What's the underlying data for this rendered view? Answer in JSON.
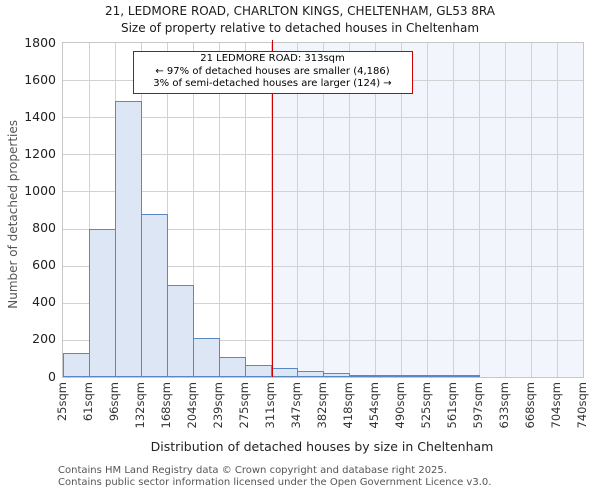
{
  "header": {
    "title": "21, LEDMORE ROAD, CHARLTON KINGS, CHELTENHAM, GL53 8RA",
    "subtitle": "Size of property relative to detached houses in Cheltenham"
  },
  "chart_data": {
    "type": "bar",
    "title": "21, LEDMORE ROAD, CHARLTON KINGS, CHELTENHAM, GL53 8RA",
    "subtitle": "Size of property relative to detached houses in Cheltenham",
    "xlabel": "Distribution of detached houses by size in Cheltenham",
    "ylabel": "Number of detached properties",
    "ylim": [
      0,
      1800
    ],
    "ytick_step": 200,
    "x_range_sqm": [
      25,
      740
    ],
    "tick_labels": [
      "25sqm",
      "61sqm",
      "96sqm",
      "132sqm",
      "168sqm",
      "204sqm",
      "239sqm",
      "275sqm",
      "311sqm",
      "347sqm",
      "382sqm",
      "418sqm",
      "454sqm",
      "490sqm",
      "525sqm",
      "561sqm",
      "597sqm",
      "633sqm",
      "668sqm",
      "704sqm",
      "740sqm"
    ],
    "values": [
      130,
      800,
      1490,
      880,
      495,
      210,
      110,
      65,
      50,
      30,
      22,
      10,
      5,
      5,
      5,
      5,
      0,
      0,
      0,
      0
    ],
    "grid": true,
    "legend": null,
    "marker": {
      "value_sqm": 313,
      "label_line1": "21 LEDMORE ROAD: 313sqm",
      "label_line2": "← 97% of detached houses are smaller (4,186)",
      "label_line3": "3% of semi-detached houses are larger (124) →",
      "color": "#cc0000"
    },
    "colors": {
      "bar_fill": "#dce6f4",
      "bar_border": "#5c87c5",
      "grid": "#d2d2d2",
      "tint_right_of_marker": "#f2f5fc",
      "marker_red": "#cc0000"
    }
  },
  "footer": {
    "line1": "Contains HM Land Registry data © Crown copyright and database right 2025.",
    "line2": "Contains public sector information licensed under the Open Government Licence v3.0."
  }
}
